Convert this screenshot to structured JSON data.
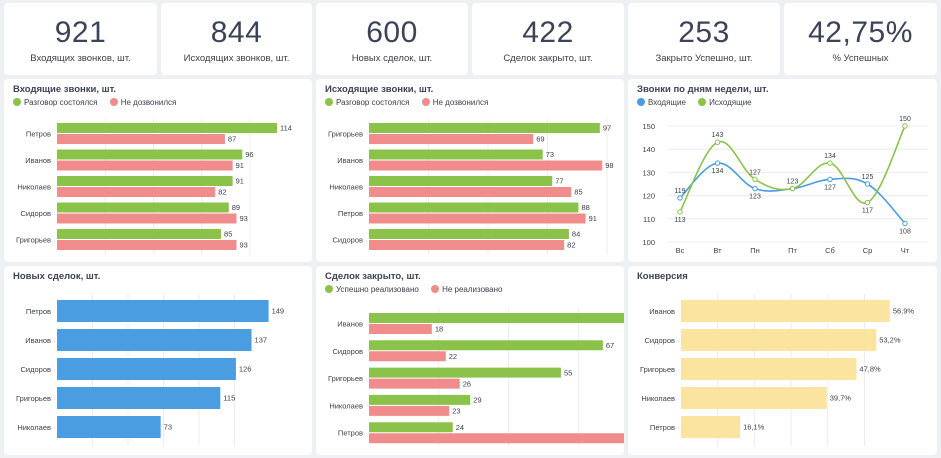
{
  "kpis": [
    {
      "value": "921",
      "label": "Входящих звонков, шт."
    },
    {
      "value": "844",
      "label": "Исходящих звонков, шт."
    },
    {
      "value": "600",
      "label": "Новых сделок, шт."
    },
    {
      "value": "422",
      "label": "Сделок закрыто, шт."
    },
    {
      "value": "253",
      "label": "Закрыто Успешно, шт."
    },
    {
      "value": "42,75%",
      "label": "% Успешных"
    }
  ],
  "colors": {
    "green": "#8bc34a",
    "red": "#f08c8c",
    "blue": "#4a9de0",
    "yellow": "#fbe3a0",
    "line_blue": "#4a9de0",
    "line_green": "#8bc34a"
  },
  "chart_data": [
    {
      "id": "incoming",
      "type": "bar",
      "title": "Входящие звонки, шт.",
      "categories": [
        "Петров",
        "Иванов",
        "Николаев",
        "Сидоров",
        "Григорьев"
      ],
      "series": [
        {
          "name": "Разговор состоялся",
          "values": [
            114,
            96,
            91,
            89,
            85
          ]
        },
        {
          "name": "Не дозвонился",
          "values": [
            87,
            91,
            82,
            93,
            93
          ]
        }
      ],
      "legend": "top-left"
    },
    {
      "id": "outgoing",
      "type": "bar",
      "title": "Исходящие звонки, шт.",
      "categories": [
        "Григорьев",
        "Иванов",
        "Николаев",
        "Петров",
        "Сидоров"
      ],
      "series": [
        {
          "name": "Разговор состоялся",
          "values": [
            97,
            73,
            77,
            88,
            84
          ]
        },
        {
          "name": "Не дозвонился",
          "values": [
            69,
            98,
            85,
            91,
            82
          ]
        }
      ],
      "legend": "top-left"
    },
    {
      "id": "weekday",
      "type": "line",
      "title": "Звонки по дням недели, шт.",
      "x": [
        "Вс",
        "Вт",
        "Пн",
        "Пт",
        "Сб",
        "Ср",
        "Чт"
      ],
      "series": [
        {
          "name": "Входящие",
          "values": [
            119,
            134,
            123,
            123,
            127,
            125,
            108
          ]
        },
        {
          "name": "Исходящие",
          "values": [
            113,
            143,
            127,
            123,
            134,
            117,
            150
          ]
        }
      ],
      "y_ticks": [
        100,
        110,
        120,
        130,
        140,
        150
      ],
      "ylim": [
        100,
        150
      ],
      "legend": "top-left"
    },
    {
      "id": "new_deals",
      "type": "bar",
      "title": "Новых сделок, шт.",
      "categories": [
        "Петров",
        "Иванов",
        "Сидоров",
        "Григорьев",
        "Николаев"
      ],
      "series": [
        {
          "values": [
            149,
            137,
            126,
            115,
            73
          ]
        }
      ]
    },
    {
      "id": "closed_deals",
      "type": "bar",
      "title": "Сделок закрыто, шт.",
      "categories": [
        "Иванов",
        "Сидоров",
        "Григорьев",
        "Николаев",
        "Петров"
      ],
      "series": [
        {
          "name": "Успешно реализовано",
          "values": [
            78,
            67,
            55,
            29,
            24
          ]
        },
        {
          "name": "Не реализовано",
          "values": [
            18,
            22,
            26,
            23,
            80
          ]
        }
      ],
      "legend": "top-left"
    },
    {
      "id": "conversion",
      "type": "bar",
      "title": "Конверсия",
      "categories": [
        "Иванов",
        "Сидоров",
        "Григорьев",
        "Николаев",
        "Петров"
      ],
      "series": [
        {
          "values": [
            56.9,
            53.2,
            47.8,
            39.7,
            16.1
          ],
          "labels": [
            "56,9%",
            "53,2%",
            "47,8%",
            "39,7%",
            "16,1%"
          ]
        }
      ]
    }
  ]
}
